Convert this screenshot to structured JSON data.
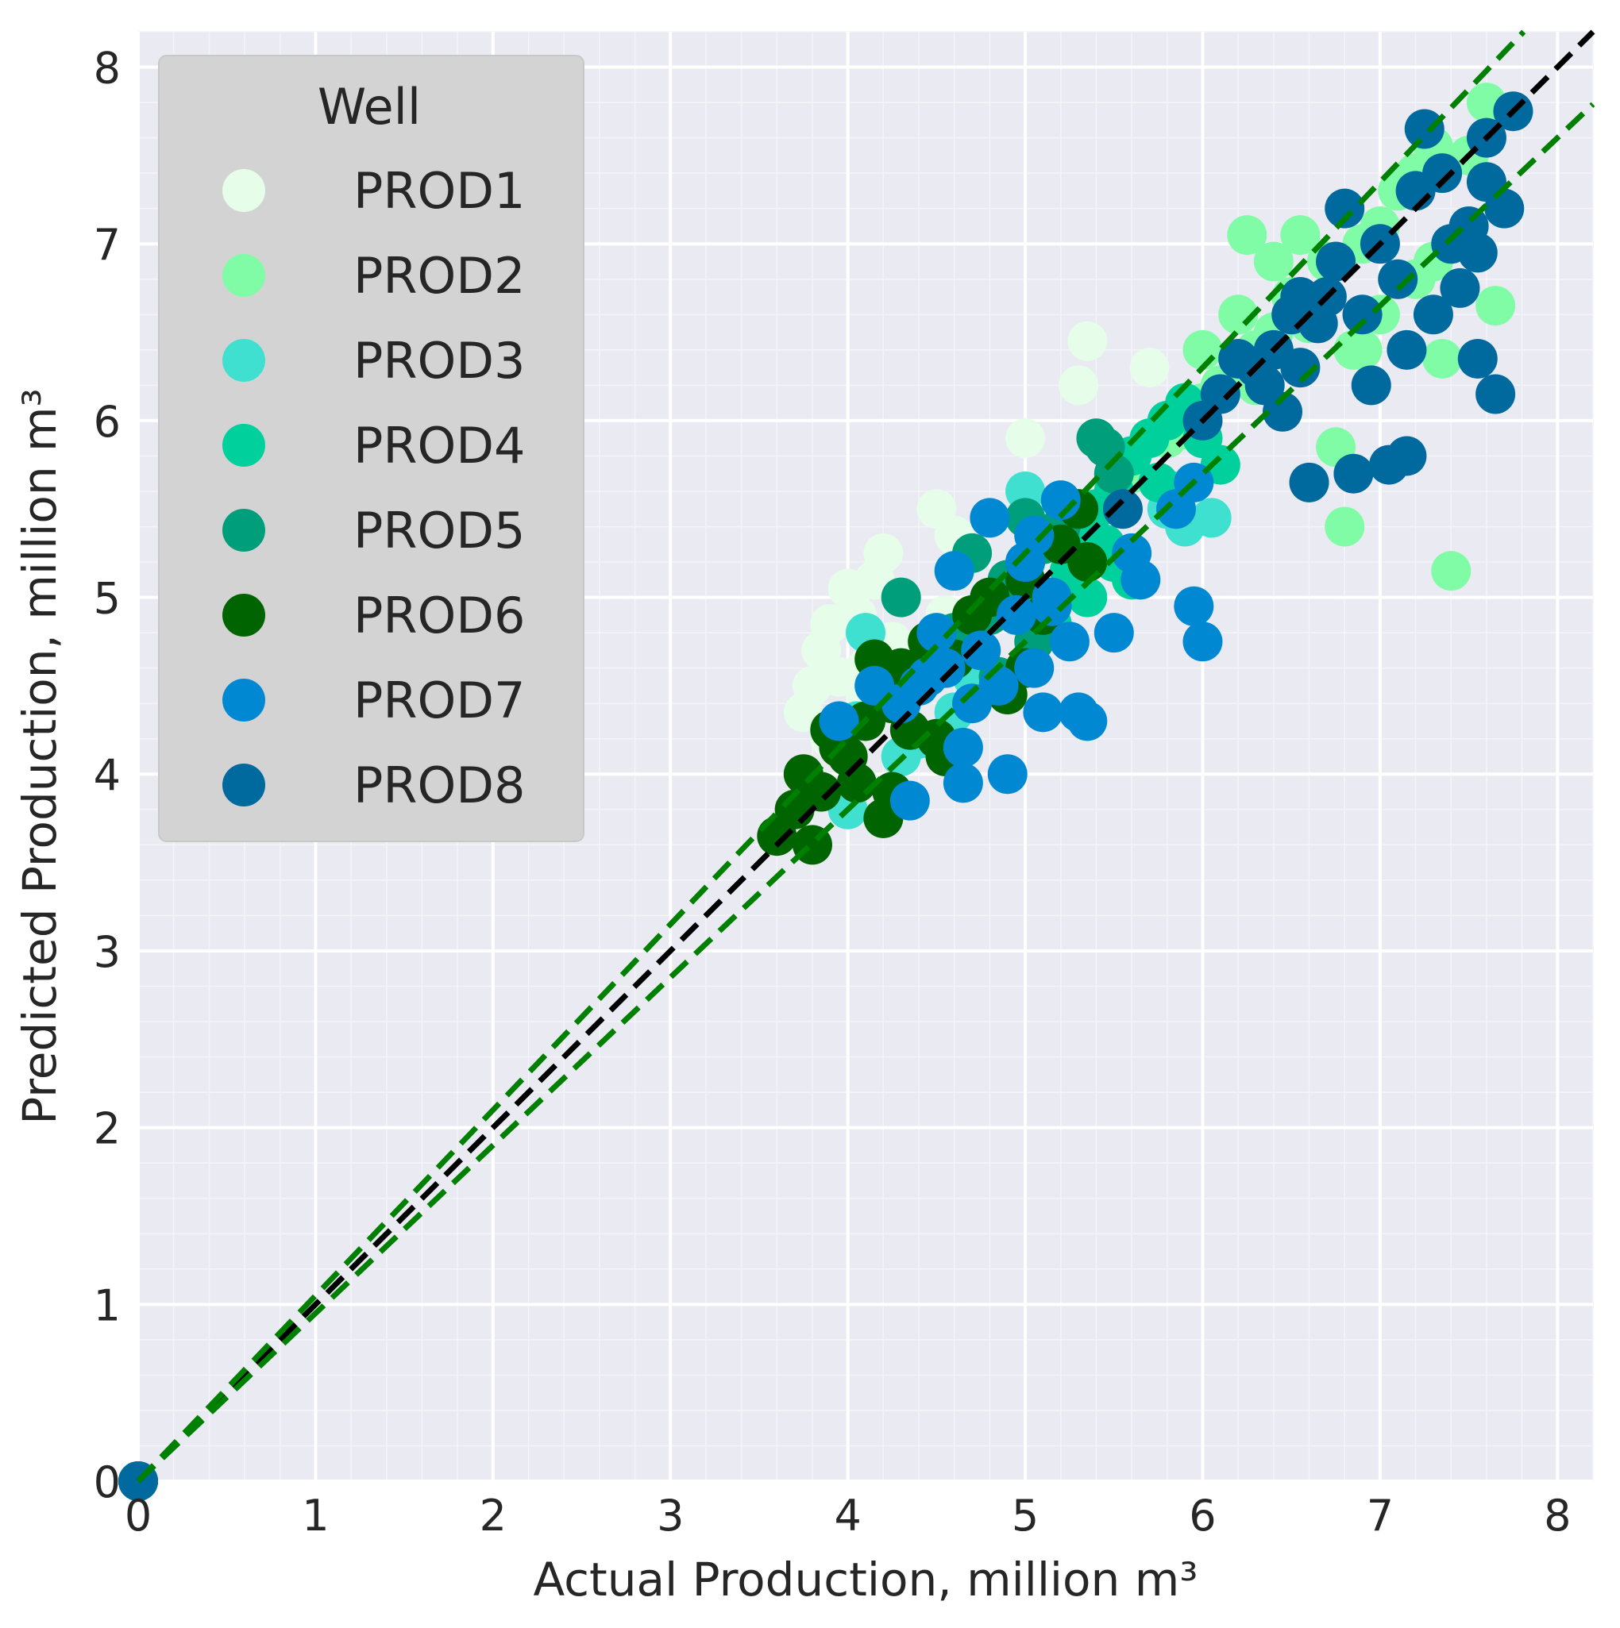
{
  "chart_data": {
    "type": "scatter",
    "title": "",
    "xlabel": "Actual Production, million m³",
    "ylabel": "Predicted Production, million m³",
    "xlim": [
      0,
      8.2
    ],
    "ylim": [
      0,
      8.2
    ],
    "xticks": [
      "0",
      "1",
      "2",
      "3",
      "4",
      "5",
      "6",
      "7",
      "8"
    ],
    "yticks": [
      "0",
      "1",
      "2",
      "3",
      "4",
      "5",
      "6",
      "7",
      "8"
    ],
    "grid": true,
    "background": "#eaeaf2",
    "legend": {
      "title": "Well",
      "position": "top-left"
    },
    "reference_lines": [
      {
        "name": "identity",
        "slope": 1.0,
        "color": "#000000",
        "style": "dashed"
      },
      {
        "name": "upper-bound",
        "slope": 1.05,
        "color": "#008000",
        "style": "dashed"
      },
      {
        "name": "lower-bound",
        "slope": 0.95,
        "color": "#008000",
        "style": "dashed"
      }
    ],
    "series": [
      {
        "name": "PROD1",
        "color": "#e5fde9",
        "points": [
          [
            0,
            0
          ],
          [
            3.75,
            4.35
          ],
          [
            3.8,
            4.5
          ],
          [
            3.85,
            4.7
          ],
          [
            3.9,
            4.85
          ],
          [
            4.0,
            5.05
          ],
          [
            4.05,
            4.9
          ],
          [
            4.1,
            4.6
          ],
          [
            4.15,
            5.1
          ],
          [
            4.2,
            5.25
          ],
          [
            3.9,
            4.2
          ],
          [
            4.0,
            4.3
          ],
          [
            4.3,
            4.4
          ],
          [
            4.5,
            5.5
          ],
          [
            4.6,
            5.35
          ],
          [
            4.4,
            4.7
          ],
          [
            4.1,
            4.45
          ],
          [
            5.0,
            5.9
          ],
          [
            5.3,
            6.2
          ],
          [
            5.35,
            6.45
          ],
          [
            5.7,
            6.3
          ],
          [
            4.55,
            4.9
          ],
          [
            4.25,
            4.75
          ],
          [
            3.95,
            4.55
          ]
        ]
      },
      {
        "name": "PROD2",
        "color": "#80fca6",
        "points": [
          [
            0,
            0
          ],
          [
            5.6,
            5.7
          ],
          [
            5.8,
            5.9
          ],
          [
            6.0,
            6.1
          ],
          [
            6.1,
            6.2
          ],
          [
            6.2,
            6.6
          ],
          [
            6.25,
            7.05
          ],
          [
            6.3,
            6.4
          ],
          [
            6.4,
            6.5
          ],
          [
            6.5,
            6.7
          ],
          [
            6.55,
            7.05
          ],
          [
            6.6,
            5.65
          ],
          [
            6.7,
            6.9
          ],
          [
            6.75,
            5.85
          ],
          [
            6.8,
            5.4
          ],
          [
            6.85,
            6.4
          ],
          [
            6.9,
            7.0
          ],
          [
            7.0,
            7.1
          ],
          [
            7.1,
            7.3
          ],
          [
            7.2,
            7.4
          ],
          [
            7.3,
            7.55
          ],
          [
            7.35,
            6.35
          ],
          [
            7.4,
            5.15
          ],
          [
            7.5,
            7.5
          ],
          [
            7.6,
            7.8
          ],
          [
            7.65,
            6.65
          ],
          [
            7.3,
            6.9
          ],
          [
            7.0,
            6.6
          ],
          [
            6.6,
            6.55
          ],
          [
            6.9,
            6.4
          ],
          [
            6.3,
            6.2
          ],
          [
            6.0,
            6.4
          ],
          [
            5.9,
            5.95
          ],
          [
            7.2,
            6.8
          ],
          [
            6.4,
            6.9
          ]
        ]
      },
      {
        "name": "PROD3",
        "color": "#40e0d0",
        "points": [
          [
            0,
            0
          ],
          [
            4.0,
            3.8
          ],
          [
            4.05,
            4.3
          ],
          [
            4.1,
            4.8
          ],
          [
            4.3,
            4.1
          ],
          [
            4.4,
            4.2
          ],
          [
            5.0,
            5.6
          ],
          [
            5.2,
            5.4
          ],
          [
            5.5,
            5.6
          ],
          [
            5.8,
            5.5
          ],
          [
            5.9,
            5.4
          ],
          [
            6.05,
            5.45
          ],
          [
            5.85,
            5.6
          ],
          [
            5.3,
            5.35
          ],
          [
            4.6,
            4.35
          ],
          [
            4.7,
            4.55
          ]
        ]
      },
      {
        "name": "PROD4",
        "color": "#00d09c",
        "points": [
          [
            0,
            0
          ],
          [
            4.6,
            4.7
          ],
          [
            4.8,
            4.9
          ],
          [
            5.0,
            5.2
          ],
          [
            5.1,
            5.0
          ],
          [
            5.2,
            5.3
          ],
          [
            5.3,
            5.4
          ],
          [
            5.4,
            5.5
          ],
          [
            5.5,
            5.6
          ],
          [
            5.6,
            5.8
          ],
          [
            5.7,
            5.9
          ],
          [
            5.8,
            6.0
          ],
          [
            5.9,
            6.1
          ],
          [
            6.0,
            5.9
          ],
          [
            5.5,
            5.2
          ],
          [
            5.6,
            5.1
          ],
          [
            5.35,
            5.0
          ],
          [
            5.45,
            5.3
          ],
          [
            5.75,
            5.65
          ],
          [
            6.1,
            5.75
          ],
          [
            5.15,
            4.85
          ],
          [
            5.25,
            5.15
          ]
        ]
      },
      {
        "name": "PROD5",
        "color": "#009e7a",
        "points": [
          [
            0,
            0
          ],
          [
            4.3,
            5.0
          ],
          [
            4.4,
            4.6
          ],
          [
            4.5,
            4.7
          ],
          [
            4.6,
            4.8
          ],
          [
            4.7,
            5.25
          ],
          [
            4.8,
            4.9
          ],
          [
            4.9,
            5.1
          ],
          [
            5.0,
            5.45
          ],
          [
            5.1,
            5.3
          ],
          [
            5.2,
            5.4
          ],
          [
            5.3,
            5.5
          ],
          [
            5.4,
            5.9
          ],
          [
            5.5,
            5.7
          ],
          [
            5.45,
            5.85
          ],
          [
            5.05,
            4.75
          ],
          [
            4.85,
            4.55
          ]
        ]
      },
      {
        "name": "PROD6",
        "color": "#006400",
        "points": [
          [
            0,
            0
          ],
          [
            3.6,
            3.65
          ],
          [
            3.7,
            3.8
          ],
          [
            3.75,
            4.0
          ],
          [
            3.8,
            3.6
          ],
          [
            3.85,
            3.9
          ],
          [
            3.9,
            4.25
          ],
          [
            4.0,
            4.1
          ],
          [
            4.05,
            3.95
          ],
          [
            4.1,
            4.3
          ],
          [
            4.15,
            4.65
          ],
          [
            4.2,
            3.75
          ],
          [
            4.25,
            4.4
          ],
          [
            4.3,
            4.6
          ],
          [
            4.35,
            4.25
          ],
          [
            4.4,
            4.5
          ],
          [
            4.5,
            4.2
          ],
          [
            4.55,
            4.1
          ],
          [
            4.6,
            4.65
          ],
          [
            4.7,
            4.9
          ],
          [
            4.8,
            5.0
          ],
          [
            4.9,
            4.45
          ],
          [
            5.0,
            5.1
          ],
          [
            5.1,
            4.9
          ],
          [
            5.2,
            5.3
          ],
          [
            5.3,
            5.5
          ],
          [
            5.35,
            5.2
          ],
          [
            5.0,
            4.6
          ],
          [
            4.45,
            4.75
          ],
          [
            3.95,
            4.15
          ],
          [
            4.25,
            3.9
          ]
        ]
      },
      {
        "name": "PROD7",
        "color": "#0088d2",
        "points": [
          [
            0,
            0
          ],
          [
            3.95,
            4.3
          ],
          [
            4.15,
            4.5
          ],
          [
            4.3,
            4.4
          ],
          [
            4.35,
            3.85
          ],
          [
            4.4,
            4.5
          ],
          [
            4.5,
            4.8
          ],
          [
            4.55,
            4.6
          ],
          [
            4.6,
            5.15
          ],
          [
            4.65,
            4.15
          ],
          [
            4.7,
            4.4
          ],
          [
            4.75,
            4.7
          ],
          [
            4.8,
            5.45
          ],
          [
            4.85,
            4.5
          ],
          [
            4.9,
            4.0
          ],
          [
            4.95,
            4.9
          ],
          [
            5.0,
            5.2
          ],
          [
            5.05,
            4.6
          ],
          [
            5.1,
            4.35
          ],
          [
            5.15,
            5.0
          ],
          [
            5.2,
            5.55
          ],
          [
            5.25,
            4.75
          ],
          [
            5.3,
            4.35
          ],
          [
            5.35,
            4.3
          ],
          [
            5.5,
            4.8
          ],
          [
            5.6,
            5.25
          ],
          [
            5.65,
            5.1
          ],
          [
            5.85,
            5.5
          ],
          [
            5.95,
            5.65
          ],
          [
            5.95,
            4.95
          ],
          [
            6.0,
            4.75
          ],
          [
            4.65,
            3.95
          ],
          [
            5.05,
            5.35
          ],
          [
            4.45,
            4.55
          ],
          [
            5.15,
            4.95
          ]
        ]
      },
      {
        "name": "PROD8",
        "color": "#00699e",
        "points": [
          [
            0,
            0
          ],
          [
            5.55,
            5.5
          ],
          [
            6.0,
            6.0
          ],
          [
            6.1,
            6.15
          ],
          [
            6.2,
            6.35
          ],
          [
            6.3,
            6.3
          ],
          [
            6.35,
            6.2
          ],
          [
            6.4,
            6.4
          ],
          [
            6.45,
            6.05
          ],
          [
            6.5,
            6.6
          ],
          [
            6.55,
            6.3
          ],
          [
            6.6,
            5.65
          ],
          [
            6.65,
            6.55
          ],
          [
            6.7,
            6.7
          ],
          [
            6.75,
            6.9
          ],
          [
            6.8,
            7.2
          ],
          [
            6.85,
            5.7
          ],
          [
            6.9,
            6.6
          ],
          [
            6.95,
            6.2
          ],
          [
            7.0,
            7.0
          ],
          [
            7.05,
            5.75
          ],
          [
            7.1,
            6.8
          ],
          [
            7.15,
            5.8
          ],
          [
            7.2,
            7.3
          ],
          [
            7.25,
            7.65
          ],
          [
            7.3,
            6.6
          ],
          [
            7.35,
            7.4
          ],
          [
            7.4,
            7.0
          ],
          [
            7.45,
            6.75
          ],
          [
            7.5,
            7.1
          ],
          [
            7.55,
            6.35
          ],
          [
            7.6,
            7.6
          ],
          [
            7.65,
            6.15
          ],
          [
            7.7,
            7.2
          ],
          [
            7.75,
            7.75
          ],
          [
            7.55,
            6.95
          ],
          [
            7.6,
            7.35
          ],
          [
            6.55,
            6.7
          ],
          [
            7.15,
            6.4
          ]
        ]
      }
    ]
  }
}
